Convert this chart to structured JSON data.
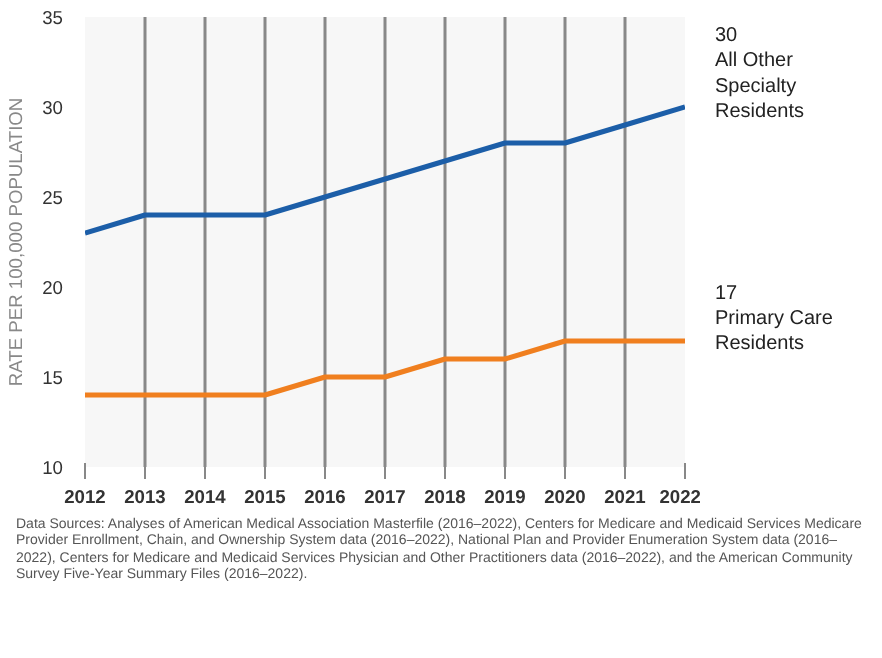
{
  "chart_data": {
    "type": "line",
    "ylabel": "RATE PER 100,000 POPULATION",
    "x": [
      2012,
      2013,
      2014,
      2015,
      2016,
      2017,
      2018,
      2019,
      2020,
      2021,
      2022
    ],
    "series": [
      {
        "color": "#1c5ea8",
        "values": [
          23,
          24,
          24,
          24,
          25,
          26,
          27,
          28,
          28,
          29,
          30
        ]
      },
      {
        "color": "#f07f1f",
        "values": [
          14,
          14,
          14,
          14,
          15,
          15,
          16,
          16,
          17,
          17,
          17
        ]
      }
    ],
    "xlim": [
      2012,
      2022
    ],
    "xticks": [
      2012,
      2013,
      2014,
      2015,
      2016,
      2017,
      2018,
      2019,
      2020,
      2021,
      2022
    ],
    "ylim": [
      10,
      35
    ],
    "yticks": [
      10,
      15,
      20,
      25,
      30,
      35
    ],
    "grid": "x",
    "marker": "none",
    "line_style": "solid",
    "annotations": [
      {
        "text": "30\nAll Other\nSpecialty\nResidents",
        "x": 2022,
        "y": 30
      },
      {
        "text": "17\nPrimary Care\nResidents",
        "x": 2022,
        "y": 17
      },
      "Data Sources: Analyses of American Medical Association Masterfile (2016–2022), Centers for Medicare and Medicaid Services Medicare Provider Enrollment, Chain, and Ownership System data (2016–2022), National Plan and Provider Enumeration System data (2016–2022), Centers for Medicare and Medicaid Services Physician and Other Practitioners data (2016–2022), and the American Community Survey Five-Year Summary Files (2016–2022)."
    ]
  }
}
